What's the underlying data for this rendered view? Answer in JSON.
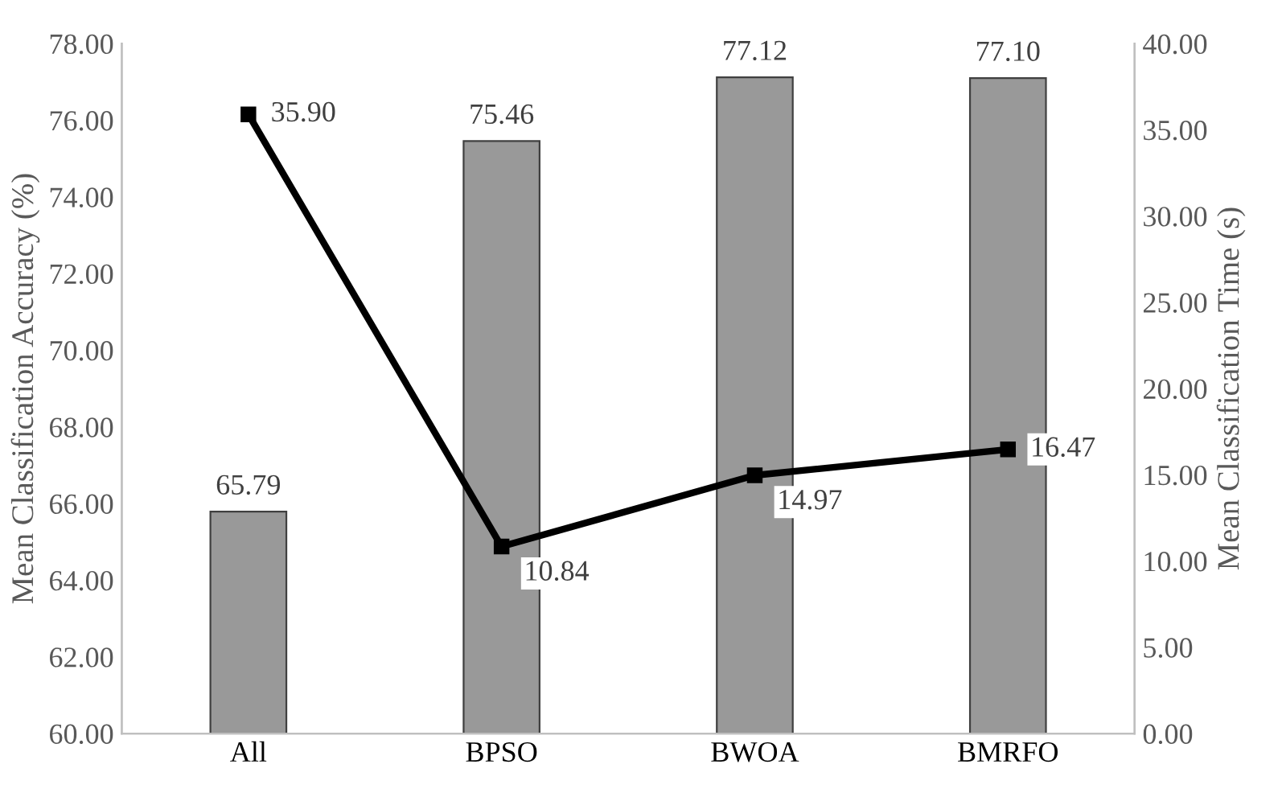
{
  "chart_data": {
    "type": "bar",
    "ylabel": "Mean Classification Accuracy (%)",
    "y2label": "Mean Classification Time (s)",
    "categories": [
      "All",
      "BPSO",
      "BWOA",
      "BMRFO"
    ],
    "series": [
      {
        "color": "#999999",
        "values": [
          65.79,
          75.46,
          77.12,
          77.1
        ],
        "value_labels": [
          "65.79",
          "75.46",
          "77.12",
          "77.10"
        ]
      },
      {
        "type": "line",
        "axis": "y2",
        "color": "#000000",
        "values": [
          35.9,
          10.84,
          14.97,
          16.47
        ],
        "value_labels": [
          "35.90",
          "10.84",
          "14.97",
          "16.47"
        ],
        "marker": "square",
        "line_style": "solid"
      }
    ],
    "ylim": [
      60,
      78
    ],
    "yticks": [
      {
        "value": 60,
        "label": "60.00"
      },
      {
        "value": 62,
        "label": "62.00"
      },
      {
        "value": 64,
        "label": "64.00"
      },
      {
        "value": 66,
        "label": "66.00"
      },
      {
        "value": 68,
        "label": "68.00"
      },
      {
        "value": 70,
        "label": "70.00"
      },
      {
        "value": 72,
        "label": "72.00"
      },
      {
        "value": 74,
        "label": "74.00"
      },
      {
        "value": 76,
        "label": "76.00"
      },
      {
        "value": 78,
        "label": "78.00"
      }
    ],
    "y2lim": [
      0,
      40
    ],
    "y2ticks": [
      {
        "value": 0,
        "label": "0.00"
      },
      {
        "value": 5,
        "label": "5.00"
      },
      {
        "value": 10,
        "label": "10.00"
      },
      {
        "value": 15,
        "label": "15.00"
      },
      {
        "value": 20,
        "label": "20.00"
      },
      {
        "value": 25,
        "label": "25.00"
      },
      {
        "value": 30,
        "label": "30.00"
      },
      {
        "value": 35,
        "label": "35.00"
      },
      {
        "value": 40,
        "label": "40.00"
      }
    ],
    "grid": false,
    "legend": false
  }
}
